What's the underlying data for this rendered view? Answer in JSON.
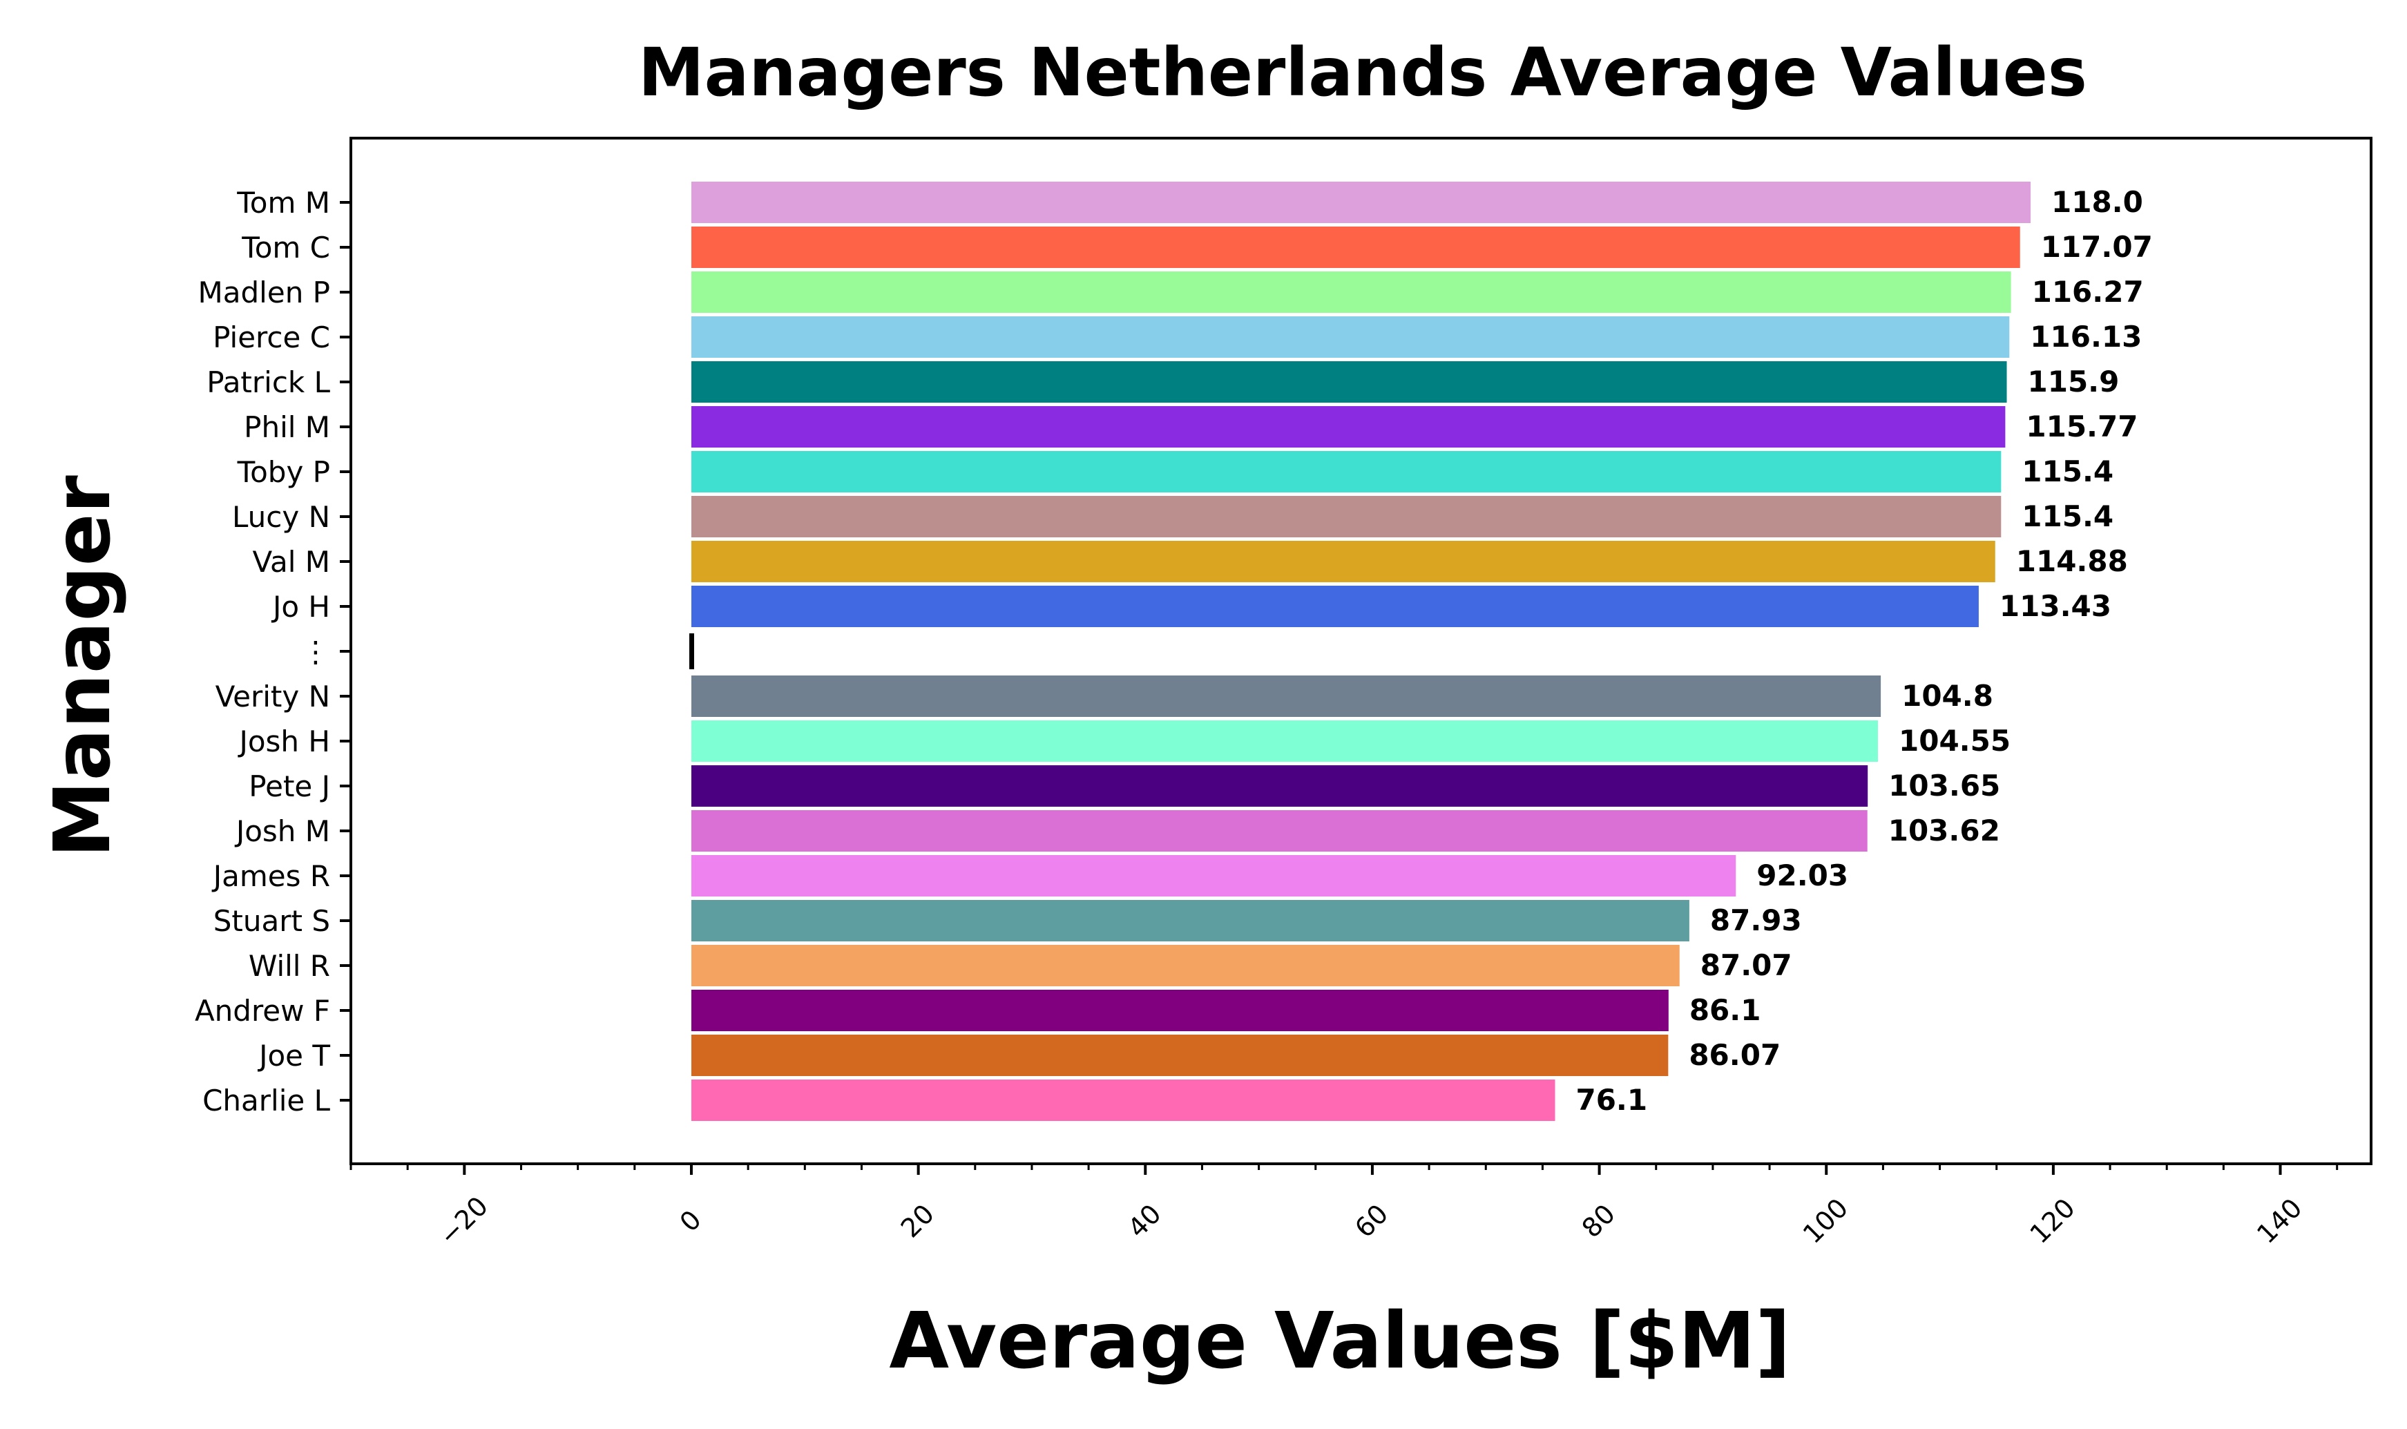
{
  "chart_data": {
    "type": "bar",
    "orientation": "horizontal",
    "title": "Managers Netherlands Average Values",
    "xlabel": "Average Values [$M]",
    "ylabel": "Manager",
    "xlim": [
      -30,
      148
    ],
    "xticks": [
      -20,
      0,
      20,
      40,
      60,
      80,
      100,
      120,
      140
    ],
    "xtick_labels": [
      "−20",
      "0",
      "20",
      "40",
      "60",
      "80",
      "100",
      "120",
      "140"
    ],
    "grid": false,
    "categories": [
      "Tom M",
      "Tom C",
      "Madlen P",
      "Pierce C",
      "Patrick L",
      "Phil M",
      "Toby P",
      "Lucy N",
      "Val M",
      "Jo H",
      "⋮",
      "Verity N",
      "Josh H",
      "Pete J",
      "Josh M",
      "James R",
      "Stuart S",
      "Will R",
      "Andrew F",
      "Joe T",
      "Charlie L"
    ],
    "values": [
      118.0,
      117.07,
      116.27,
      116.13,
      115.9,
      115.77,
      115.4,
      115.4,
      114.88,
      113.43,
      null,
      104.8,
      104.55,
      103.65,
      103.62,
      92.03,
      87.93,
      87.07,
      86.1,
      86.07,
      76.1
    ],
    "value_labels": [
      "118.0",
      "117.07",
      "116.27",
      "116.13",
      "115.9",
      "115.77",
      "115.4",
      "115.4",
      "114.88",
      "113.43",
      "",
      "104.8",
      "104.55",
      "103.65",
      "103.62",
      "92.03",
      "87.93",
      "87.07",
      "86.1",
      "86.07",
      "76.1"
    ],
    "colors": [
      "#DDA0DD",
      "#FF6347",
      "#98FB98",
      "#87CEEB",
      "#008080",
      "#8A2BE2",
      "#40E0D0",
      "#BC8F8F",
      "#DAA520",
      "#4169E1",
      "#000000",
      "#708090",
      "#7FFFD4",
      "#4B0082",
      "#DA70D6",
      "#EE82EE",
      "#5F9EA0",
      "#F4A460",
      "#800080",
      "#D2691E",
      "#FF69B4"
    ]
  }
}
